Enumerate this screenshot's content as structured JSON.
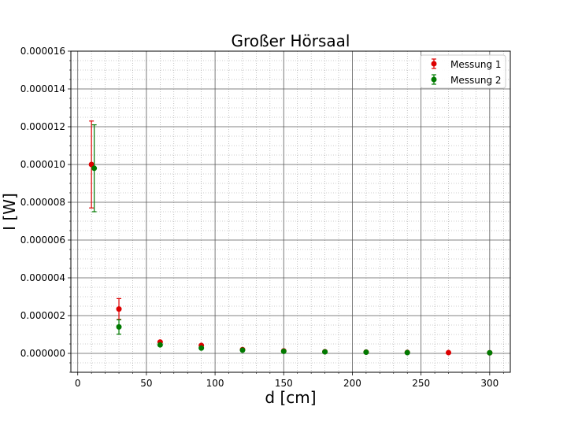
{
  "chart_data": {
    "type": "scatter",
    "title": "Großer Hörsaal",
    "xlabel": "d [cm]",
    "ylabel": "I [W]",
    "xlim": [
      -5,
      315
    ],
    "ylim": [
      -1e-06,
      1.6e-05
    ],
    "x_ticks": [
      0,
      50,
      100,
      150,
      200,
      250,
      300
    ],
    "x_tick_labels": [
      "0",
      "50",
      "100",
      "150",
      "200",
      "250",
      "300"
    ],
    "y_ticks": [
      0,
      2e-06,
      4e-06,
      6e-06,
      8e-06,
      1e-05,
      1.2e-05,
      1.4e-05,
      1.6e-05
    ],
    "y_tick_labels": [
      "0.000000",
      "0.000002",
      "0.000004",
      "0.000006",
      "0.000008",
      "0.000010",
      "0.000012",
      "0.000014",
      "0.000016"
    ],
    "grid": true,
    "minor_grid": true,
    "legend_position": "top-right",
    "series": [
      {
        "name": "Messung 1",
        "color": "#dd0000",
        "x": [
          10,
          30,
          60,
          90,
          120,
          150,
          180,
          210,
          240,
          270,
          300
        ],
        "y": [
          1e-05,
          2.35e-06,
          6e-07,
          4.2e-07,
          2e-07,
          1.3e-07,
          9e-08,
          7e-08,
          5e-08,
          4e-08,
          3e-08
        ],
        "yerr": [
          2.3e-06,
          5.5e-07,
          1.2e-07,
          8e-08,
          4e-08,
          2e-08,
          2e-08,
          1e-08,
          1e-08,
          1e-08,
          1e-08
        ]
      },
      {
        "name": "Messung 2",
        "color": "#007a00",
        "x": [
          12,
          30,
          60,
          90,
          120,
          150,
          180,
          210,
          240,
          300
        ],
        "y": [
          9.8e-06,
          1.4e-06,
          4.5e-07,
          2.8e-07,
          1.7e-07,
          1.1e-07,
          8e-08,
          6e-08,
          4e-08,
          3e-08
        ],
        "yerr": [
          2.3e-06,
          3.8e-07,
          1e-07,
          6e-08,
          4e-08,
          2e-08,
          2e-08,
          1e-08,
          1e-08,
          1e-08
        ]
      }
    ]
  }
}
